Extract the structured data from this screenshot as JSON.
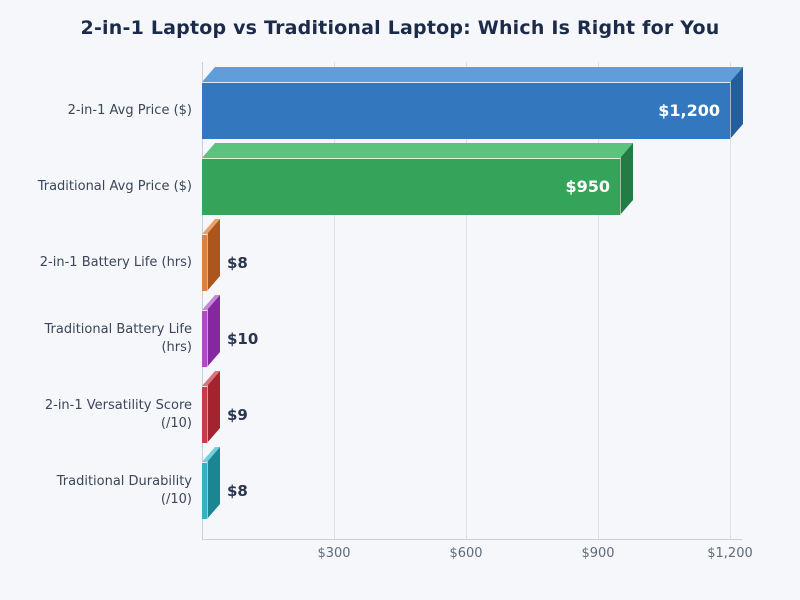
{
  "title": "2-in-1 Laptop vs Traditional Laptop: Which Is Right for You",
  "colors": {
    "background": "#f5f7fa",
    "title_text": "#1c2b4a",
    "grid_line": "#dce1e7",
    "axis_line": "#c9d0d8",
    "category_label": "#3c4659",
    "tick_label": "#5f6b7b",
    "value_label_inside": "#ffffff",
    "value_label_outside": "#2a3550"
  },
  "chart_data": {
    "type": "bar",
    "orientation": "horizontal",
    "title": "2-in-1 Laptop vs Traditional Laptop: Which Is Right for You",
    "xlabel": "",
    "ylabel": "",
    "xlim": [
      0,
      1200
    ],
    "grid": "vertical",
    "legend": "none",
    "categories": [
      "2-in-1 Avg Price ($)",
      "Traditional Avg Price ($)",
      "2-in-1 Battery Life (hrs)",
      "Traditional Battery Life (hrs)",
      "2-in-1 Versatility Score (/10)",
      "Traditional Durability (/10)"
    ],
    "values": [
      1200,
      950,
      8,
      10,
      9,
      8
    ],
    "value_labels": [
      "$1,200",
      "$950",
      "$8",
      "$10",
      "$9",
      "$8"
    ],
    "value_label_placement": [
      "inside",
      "inside",
      "outside",
      "outside",
      "outside",
      "outside"
    ],
    "bar_colors": [
      {
        "front": "#3377bf",
        "top": "#5f9edb",
        "side": "#245d9e"
      },
      {
        "front": "#35a45b",
        "top": "#5cc37f",
        "side": "#237c43"
      },
      {
        "front": "#dd8142",
        "top": "#eba06a",
        "side": "#ab561d"
      },
      {
        "front": "#a94fc2",
        "top": "#c687d8",
        "side": "#85279e"
      },
      {
        "front": "#c43d49",
        "top": "#da727c",
        "side": "#a3242f"
      },
      {
        "front": "#33b0c1",
        "top": "#6fd0dc",
        "side": "#1a8694"
      }
    ],
    "x_ticks": [
      {
        "value": 300,
        "label": "$300"
      },
      {
        "value": 600,
        "label": "$600"
      },
      {
        "value": 900,
        "label": "$900"
      },
      {
        "value": 1200,
        "label": "$1,200"
      }
    ]
  }
}
